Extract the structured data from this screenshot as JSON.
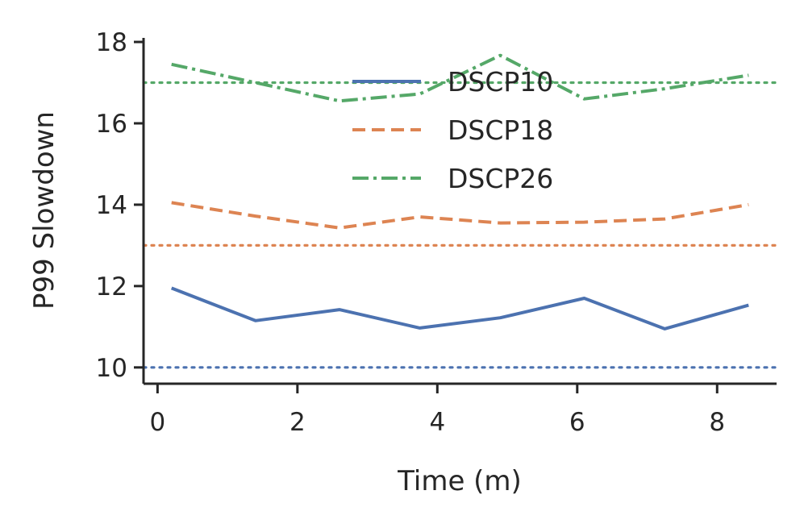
{
  "chart_data": {
    "type": "line",
    "title": "",
    "xlabel": "Time (m)",
    "ylabel": "P99 Slowdown",
    "xlim": [
      -0.2,
      8.85
    ],
    "ylim": [
      9.6,
      18.1
    ],
    "xticks": [
      0,
      2,
      4,
      6,
      8
    ],
    "yticks": [
      10,
      12,
      14,
      16,
      18
    ],
    "grid": false,
    "legend_position": "top-center",
    "x": [
      0.2,
      1.4,
      2.6,
      3.75,
      4.9,
      6.1,
      7.25,
      8.45
    ],
    "series": [
      {
        "name": "DSCP10",
        "color": "#4c72b0",
        "style": "solid",
        "values": [
          11.95,
          11.15,
          11.42,
          10.97,
          11.22,
          11.7,
          10.95,
          11.53
        ],
        "reference": 10.0
      },
      {
        "name": "DSCP18",
        "color": "#dd8452",
        "style": "dashed",
        "values": [
          14.05,
          13.72,
          13.43,
          13.7,
          13.55,
          13.57,
          13.65,
          14.0
        ],
        "reference": 13.0
      },
      {
        "name": "DSCP26",
        "color": "#55a868",
        "style": "dashdot",
        "values": [
          17.45,
          17.0,
          16.55,
          16.72,
          17.67,
          16.6,
          16.85,
          17.18
        ],
        "reference": 17.0
      }
    ]
  }
}
